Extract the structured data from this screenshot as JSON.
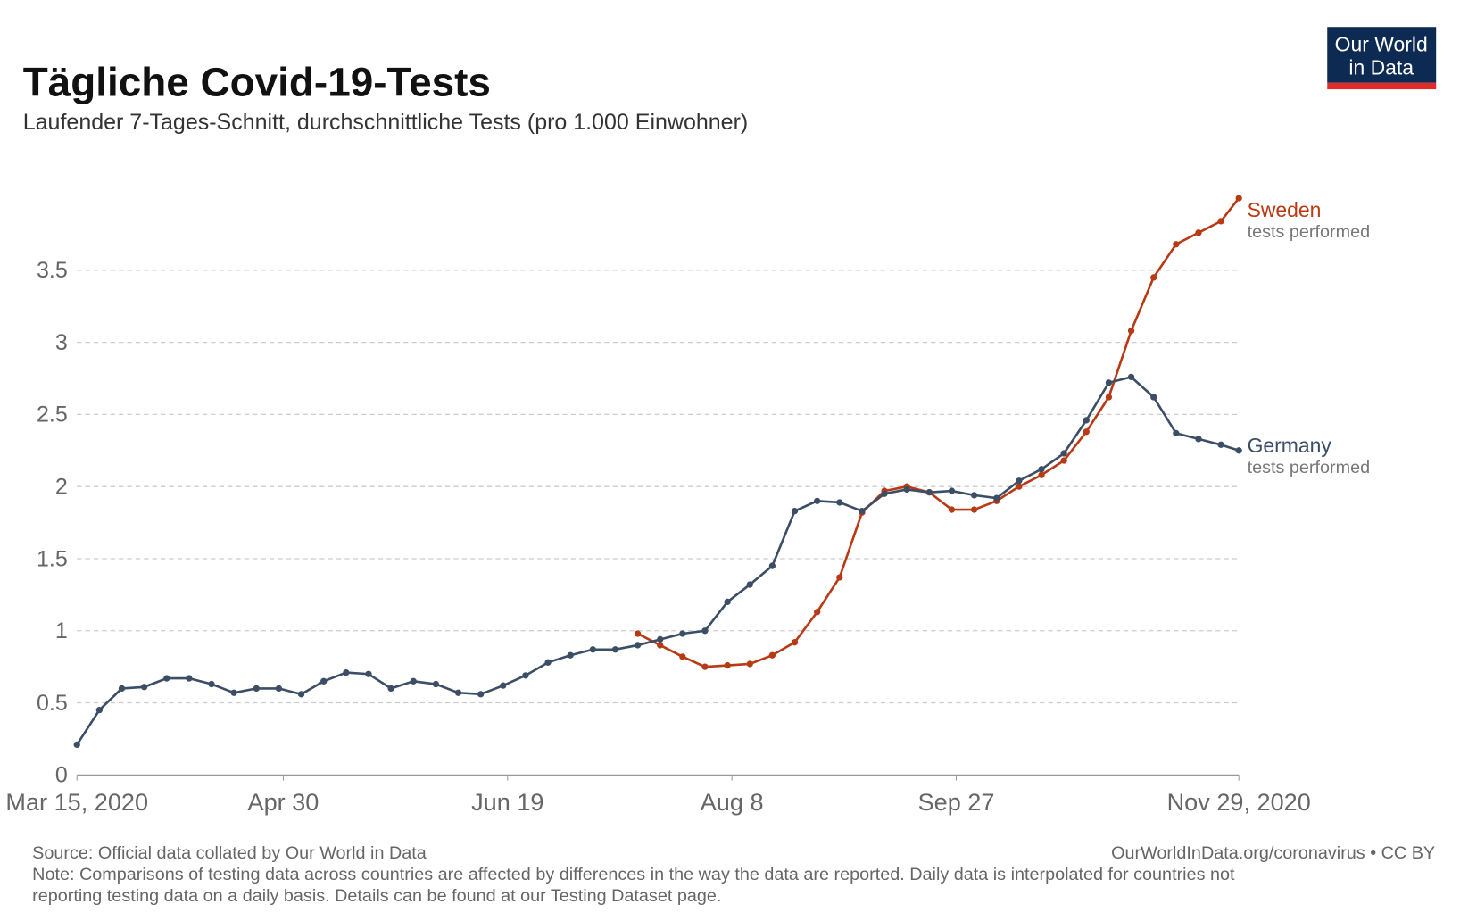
{
  "chart_data": {
    "type": "line",
    "title": "Tägliche Covid-19-Tests",
    "subtitle": "Laufender 7-Tages-Schnitt, durchschnittliche Tests (pro 1.000 Einwohner)",
    "logo": [
      "Our World",
      "in Data"
    ],
    "source": "Source: Official data collated by Our World in Data",
    "license": "OurWorldInData.org/coronavirus • CC BY",
    "note": [
      "Note: Comparisons of testing data across countries are affected by differences in the way the data are reported. Daily data is interpolated for countries not",
      "reporting testing data on a daily basis. Details can be found at our Testing Dataset page."
    ],
    "x": [
      "2020-03-15",
      "2020-03-20",
      "2020-03-25",
      "2020-03-30",
      "2020-04-04",
      "2020-04-09",
      "2020-04-14",
      "2020-04-19",
      "2020-04-24",
      "2020-04-29",
      "2020-05-04",
      "2020-05-09",
      "2020-05-14",
      "2020-05-19",
      "2020-05-24",
      "2020-05-29",
      "2020-06-03",
      "2020-06-08",
      "2020-06-13",
      "2020-06-18",
      "2020-06-23",
      "2020-06-28",
      "2020-07-03",
      "2020-07-08",
      "2020-07-13",
      "2020-07-18",
      "2020-07-23",
      "2020-07-28",
      "2020-08-02",
      "2020-08-07",
      "2020-08-12",
      "2020-08-17",
      "2020-08-22",
      "2020-08-27",
      "2020-09-01",
      "2020-09-06",
      "2020-09-11",
      "2020-09-16",
      "2020-09-21",
      "2020-09-26",
      "2020-10-01",
      "2020-10-06",
      "2020-10-11",
      "2020-10-16",
      "2020-10-21",
      "2020-10-26",
      "2020-10-31",
      "2020-11-05",
      "2020-11-10",
      "2020-11-15",
      "2020-11-20",
      "2020-11-25",
      "2020-11-29"
    ],
    "series": [
      {
        "name": "Sweden",
        "sublabel": "tests performed",
        "color": "#b83a14",
        "values": [
          null,
          null,
          null,
          null,
          null,
          null,
          null,
          null,
          null,
          null,
          null,
          null,
          null,
          null,
          null,
          null,
          null,
          null,
          null,
          null,
          null,
          null,
          null,
          null,
          null,
          0.98,
          0.9,
          0.82,
          0.75,
          0.76,
          0.77,
          0.83,
          0.92,
          1.13,
          1.37,
          1.82,
          1.97,
          2.0,
          1.96,
          1.84,
          1.84,
          1.9,
          2.0,
          2.08,
          2.18,
          2.38,
          2.62,
          3.08,
          3.45,
          3.68,
          3.76,
          3.84,
          4.0
        ]
      },
      {
        "name": "Germany",
        "sublabel": "tests performed",
        "color": "#3c4e66",
        "values": [
          0.21,
          0.45,
          0.6,
          0.61,
          0.67,
          0.67,
          0.63,
          0.57,
          0.6,
          0.6,
          0.56,
          0.65,
          0.71,
          0.7,
          0.6,
          0.65,
          0.63,
          0.57,
          0.56,
          0.62,
          0.69,
          0.78,
          0.83,
          0.87,
          0.87,
          0.9,
          0.94,
          0.98,
          1.0,
          1.2,
          1.32,
          1.45,
          1.83,
          1.9,
          1.89,
          1.83,
          1.95,
          1.98,
          1.96,
          1.97,
          1.94,
          1.92,
          2.04,
          2.12,
          2.23,
          2.46,
          2.72,
          2.76,
          2.62,
          2.37,
          2.33,
          2.29,
          2.25
        ]
      }
    ],
    "xlim": [
      "2020-03-15",
      "2020-11-29"
    ],
    "xticks": [
      {
        "value": "2020-03-15",
        "label": "Mar 15, 2020"
      },
      {
        "value": "2020-04-30",
        "label": "Apr 30"
      },
      {
        "value": "2020-06-19",
        "label": "Jun 19"
      },
      {
        "value": "2020-08-08",
        "label": "Aug 8"
      },
      {
        "value": "2020-09-27",
        "label": "Sep 27"
      },
      {
        "value": "2020-11-29",
        "label": "Nov 29, 2020"
      }
    ],
    "ylim": [
      0,
      4
    ],
    "yticks": [
      0,
      0.5,
      1,
      1.5,
      2,
      2.5,
      3,
      3.5
    ],
    "grid": true
  }
}
